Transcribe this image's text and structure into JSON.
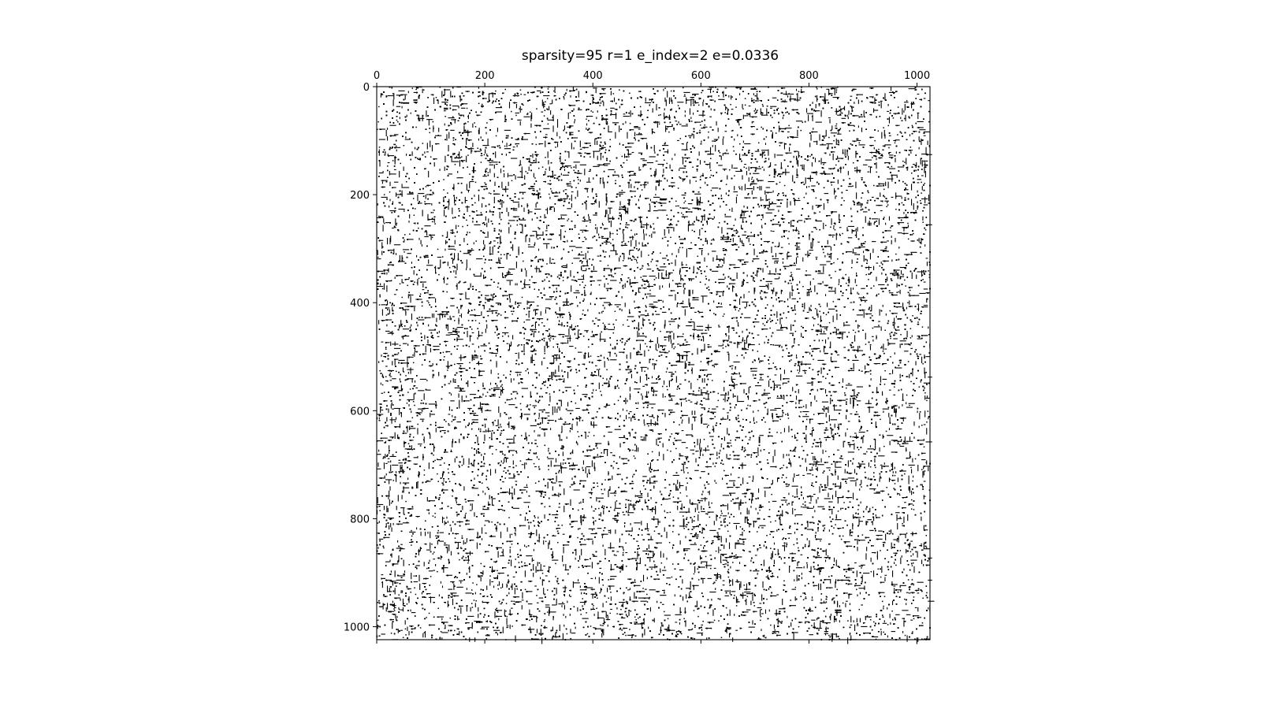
{
  "chart_data": {
    "type": "heatmap",
    "subtype": "spy",
    "title": "sparsity=95 r=1 e_index=2 e=0.0336",
    "xlabel": "",
    "ylabel": "",
    "matrix_shape": [
      1024,
      1024
    ],
    "xlim": [
      0,
      1024
    ],
    "ylim": [
      1024,
      0
    ],
    "x_ticks": [
      0,
      200,
      400,
      600,
      800,
      1000
    ],
    "y_ticks": [
      0,
      200,
      400,
      600,
      800,
      1000
    ],
    "x_tick_labels": [
      "0",
      "200",
      "400",
      "600",
      "800",
      "1000"
    ],
    "y_tick_labels": [
      "0",
      "200",
      "400",
      "600",
      "800",
      "1000"
    ],
    "x_axis_position": "top",
    "marker_color": "#000000",
    "background_color": "#ffffff",
    "grid": false,
    "legend": "none"
  }
}
